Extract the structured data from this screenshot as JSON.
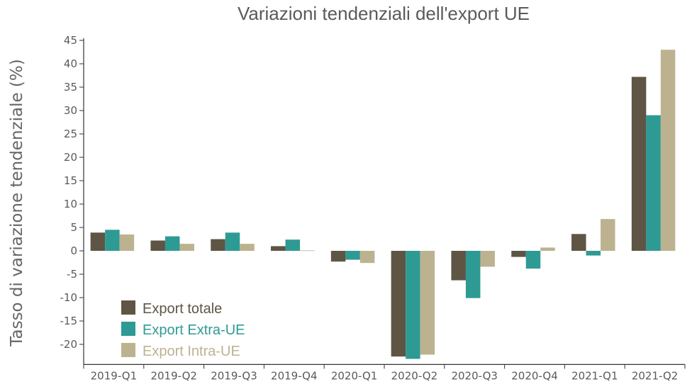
{
  "chart_data": {
    "type": "bar",
    "title": "Variazioni tendenziali dell'export UE",
    "xlabel": "",
    "ylabel": "Tasso di variazione tendenziale (%)",
    "ylim": [
      -24,
      45
    ],
    "yticks": [
      -20,
      -15,
      -10,
      -5,
      0,
      5,
      10,
      15,
      20,
      25,
      30,
      35,
      40,
      45
    ],
    "categories": [
      "2019-Q1",
      "2019-Q2",
      "2019-Q3",
      "2019-Q4",
      "2020-Q1",
      "2020-Q2",
      "2020-Q3",
      "2020-Q4",
      "2021-Q1",
      "2021-Q2"
    ],
    "series": [
      {
        "name": "Export totale",
        "color": "#5e5545",
        "values": [
          3.9,
          2.2,
          2.5,
          1.0,
          -2.3,
          -22.6,
          -6.3,
          -1.3,
          3.6,
          37.2
        ]
      },
      {
        "name": "Export Extra-UE",
        "color": "#2e9a94",
        "values": [
          4.5,
          3.1,
          3.9,
          2.4,
          -1.9,
          -23.1,
          -10.1,
          -3.8,
          -1.0,
          29.0
        ]
      },
      {
        "name": "Export Intra-UE",
        "color": "#bdb290",
        "values": [
          3.5,
          1.5,
          1.5,
          0.1,
          -2.6,
          -22.2,
          -3.4,
          0.7,
          6.8,
          43.0
        ]
      }
    ],
    "legend_position": "lower-left",
    "grid": false
  }
}
